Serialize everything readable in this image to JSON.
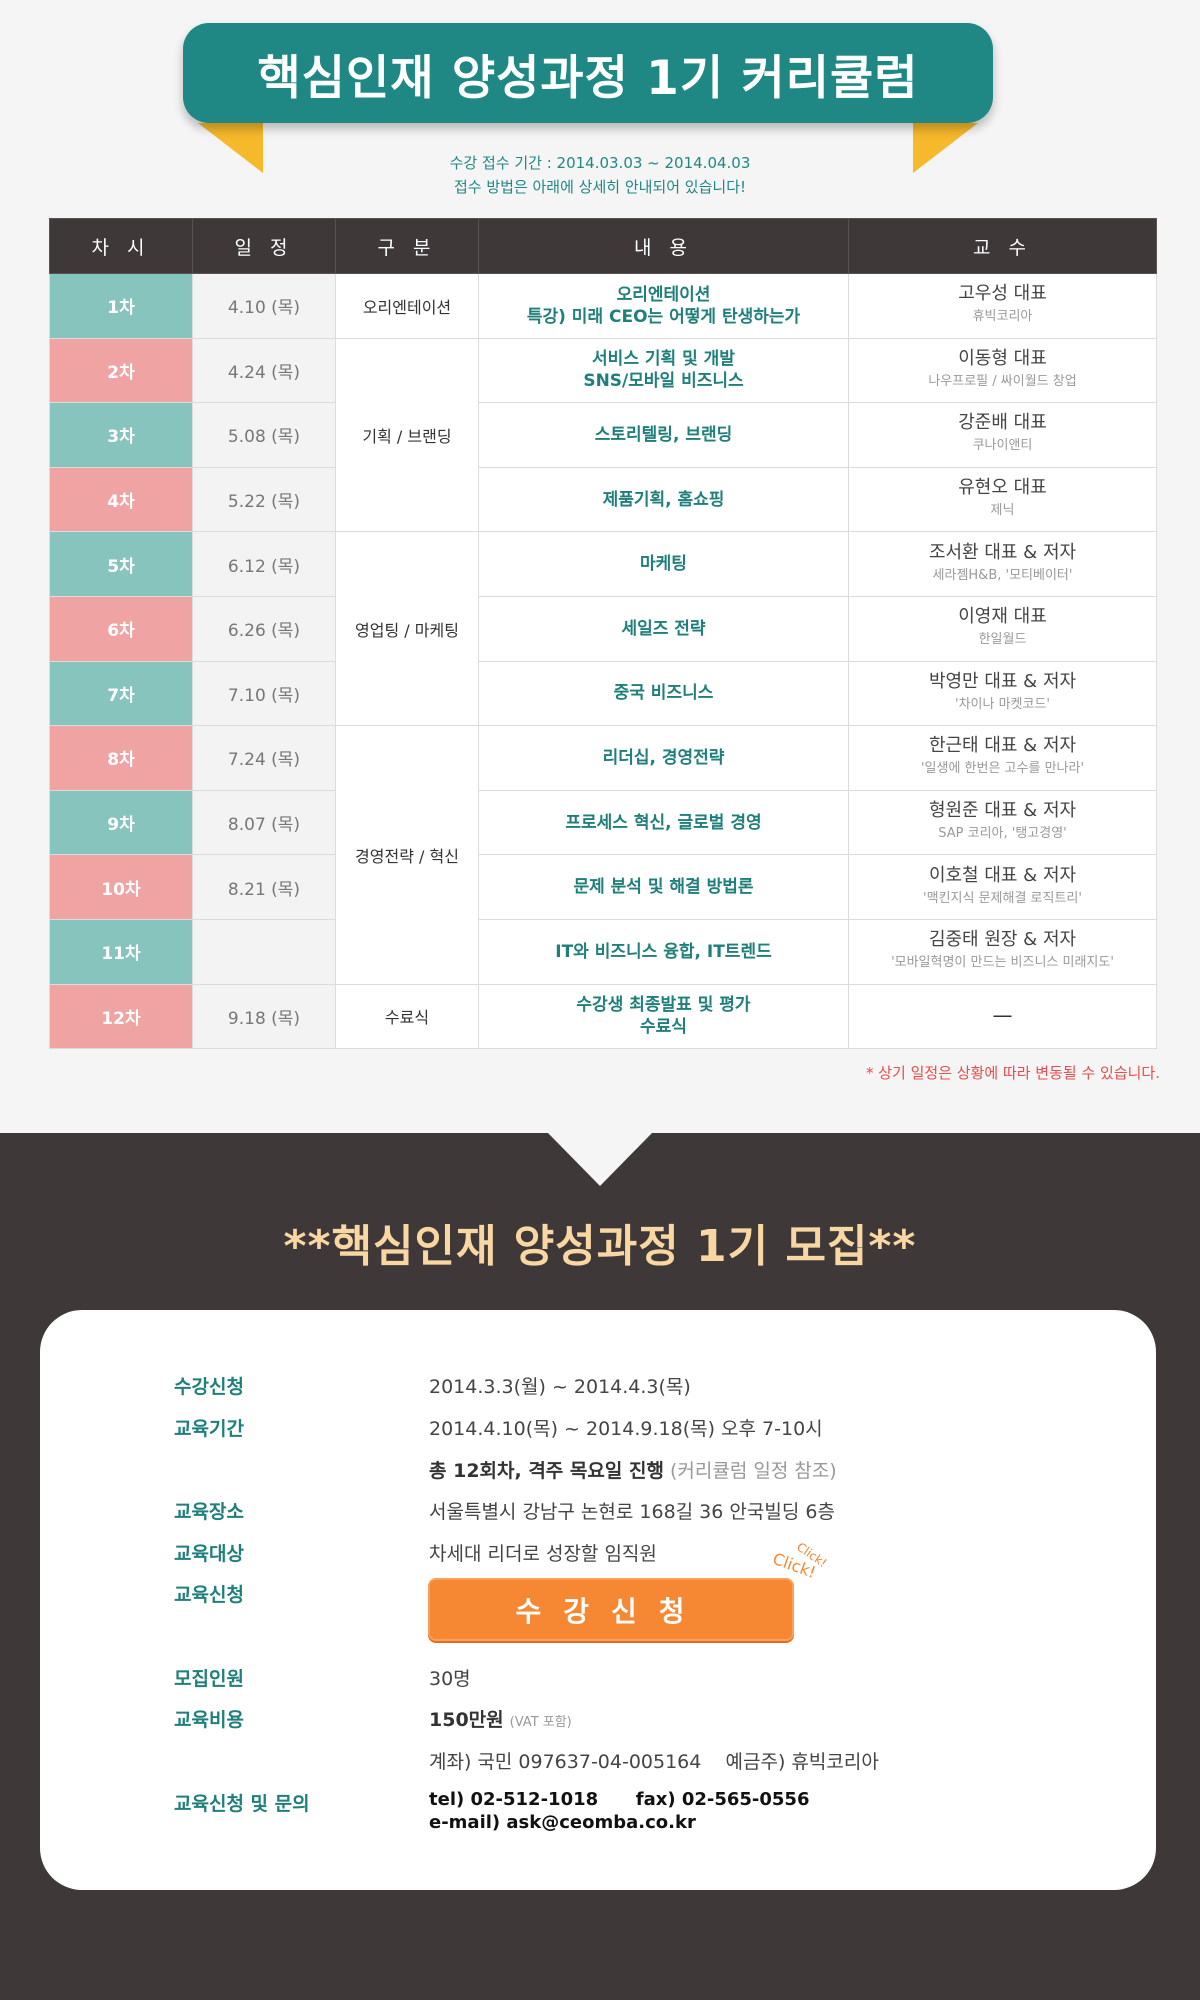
{
  "banner": {
    "title": "핵심인재 양성과정 1기 커리큘럼"
  },
  "period": {
    "line1": "수강 접수 기간 : 2014.03.03 ~ 2014.04.03",
    "line2": "접수 방법은 아래에 상세히 안내되어 있습니다!"
  },
  "table": {
    "headers": [
      "차 시",
      "일 정",
      "구 분",
      "내 용",
      "교 수"
    ],
    "categories": [
      "오리엔테이션",
      "기획 / 브랜딩",
      "영업팅 / 마케팅",
      "경영전략 / 혁신",
      "수료식"
    ],
    "rows": [
      {
        "num": "1차",
        "date": "4.10 (목)",
        "content1": "오리엔테이션",
        "content2": "특강) 미래 CEO는 어떻게 탄생하는가",
        "prof": "고우성 대표",
        "org": "휴빅코리아"
      },
      {
        "num": "2차",
        "date": "4.24 (목)",
        "content1": "서비스 기획 및 개발",
        "content2": "SNS/모바일 비즈니스",
        "prof": "이동형 대표",
        "org": "나우프로필 / 싸이월드 창업"
      },
      {
        "num": "3차",
        "date": "5.08 (목)",
        "content1": "스토리텔링, 브랜딩",
        "content2": "",
        "prof": "강준배 대표",
        "org": "쿠나이앤티"
      },
      {
        "num": "4차",
        "date": "5.22 (목)",
        "content1": "제품기획, 홈쇼핑",
        "content2": "",
        "prof": "유현오 대표",
        "org": "제닉"
      },
      {
        "num": "5차",
        "date": "6.12 (목)",
        "content1": "마케팅",
        "content2": "",
        "prof": "조서환 대표 & 저자",
        "org": "세라젬H&B, '모티베이터'"
      },
      {
        "num": "6차",
        "date": "6.26 (목)",
        "content1": "세일즈 전략",
        "content2": "",
        "prof": "이영재 대표",
        "org": "한일월드"
      },
      {
        "num": "7차",
        "date": "7.10 (목)",
        "content1": "중국 비즈니스",
        "content2": "",
        "prof": "박영만 대표 & 저자",
        "org": "'차이나 마켓코드'"
      },
      {
        "num": "8차",
        "date": "7.24 (목)",
        "content1": "리더십, 경영전략",
        "content2": "",
        "prof": "한근태 대표 & 저자",
        "org": "'일생에 한번은 고수를 만나라'"
      },
      {
        "num": "9차",
        "date": "8.07 (목)",
        "content1": "프로세스 혁신, 글로벌 경영",
        "content2": "",
        "prof": "형원준 대표 & 저자",
        "org": "SAP 코리아, '탱고경영'"
      },
      {
        "num": "10차",
        "date": "8.21 (목)",
        "content1": "문제 분석 및 해결 방법론",
        "content2": "",
        "prof": "이호철 대표 & 저자",
        "org": "'맥킨지식 문제해결 로직트리'"
      },
      {
        "num": "11차",
        "date": "",
        "content1": "IT와 비즈니스 융합, IT트렌드",
        "content2": "",
        "prof": "김중태 원장 & 저자",
        "org": "'모바일혁명이 만드는 비즈니스 미래지도'"
      },
      {
        "num": "12차",
        "date": "9.18 (목)",
        "content1": "수강생 최종발표 및 평가",
        "content2": "수료식",
        "prof": "—",
        "org": ""
      }
    ]
  },
  "notice": "* 상기 일정은 상황에 따라 변동될 수 있습니다.",
  "recruit": {
    "title": "**핵심인재 양성과정 1기 모집**",
    "fields": {
      "apply_period_label": "수강신청",
      "apply_period": "2014.3.3(월) ~ 2014.4.3(목)",
      "edu_period_label": "교육기간",
      "edu_period": "2014.4.10(목) ~ 2014.9.18(목) 오후 7-10시",
      "sessions_bold": "총 12회차, 격주 목요일 진행",
      "sessions_note": "(커리큘럼 일정 참조)",
      "place_label": "교육장소",
      "place": "서울특별시 강남구 논현로 168길 36 안국빌딩 6층",
      "target_label": "교육대상",
      "target": "차세대 리더로 성장할 임직원",
      "signup_label": "교육신청",
      "signup_button": "수강신청",
      "click_text": "Click!",
      "click_text2": "Click!",
      "capacity_label": "모집인원",
      "capacity": "30명",
      "fee_label": "교육비용",
      "fee_bold": "150만원",
      "fee_note": "(VAT 포함)",
      "account": "계좌) 국민 097637-04-005164    예금주) 휴빅코리아",
      "contact_label": "교육신청 및 문의",
      "contact_line1": "tel) 02-512-1018      fax) 02-565-0556",
      "contact_line2": "e-mail) ask@ceomba.co.kr"
    }
  },
  "colors": {
    "teal": "#1f8885",
    "accent_yellow": "#f6b92b",
    "dark": "#3e3838",
    "orange": "#f68733",
    "pink": "#f0a3a3",
    "mint": "#86c4bd"
  }
}
